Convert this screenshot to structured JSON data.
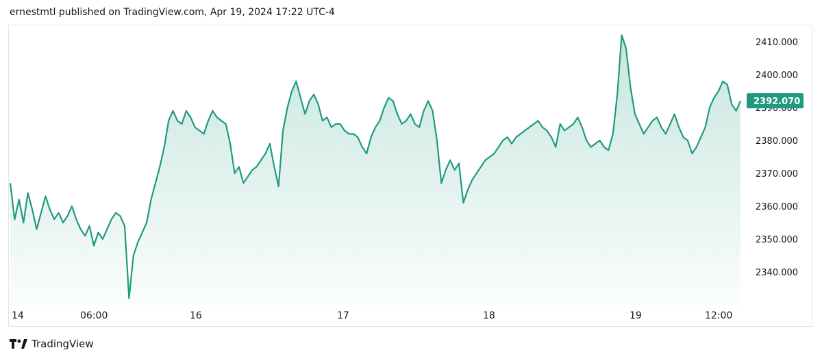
{
  "header": {
    "text": "ernestmtl published on TradingView.com, Apr 19, 2024 17:22 UTC-4"
  },
  "footer": {
    "brand": "TradingView"
  },
  "colors": {
    "line": "#1e9a7f",
    "fill": "#1e9a7f",
    "price_badge": "#1e9a7f"
  },
  "chart_data": {
    "type": "area",
    "x_ticks": [
      "14",
      "06:00",
      "16",
      "17",
      "18",
      "19",
      "12:00"
    ],
    "y_ticks": [
      "2340.000",
      "2350.000",
      "2360.000",
      "2370.000",
      "2380.000",
      "2390.000",
      "2400.000",
      "2410.000"
    ],
    "ylim": [
      2330,
      2415
    ],
    "last_price": "2392.070",
    "values": [
      2367,
      2356,
      2362,
      2355,
      2364,
      2359,
      2353,
      2358,
      2363,
      2359,
      2356,
      2358,
      2355,
      2357,
      2360,
      2356,
      2353,
      2351,
      2354,
      2348,
      2352,
      2350,
      2353,
      2356,
      2358,
      2357,
      2354,
      2332,
      2345,
      2349,
      2352,
      2355,
      2362,
      2367,
      2372,
      2378,
      2386,
      2389,
      2386,
      2385,
      2389,
      2387,
      2384,
      2383,
      2382,
      2386,
      2389,
      2387,
      2386,
      2385,
      2379,
      2370,
      2372,
      2367,
      2369,
      2371,
      2372,
      2374,
      2376,
      2379,
      2372,
      2366,
      2383,
      2390,
      2395,
      2398,
      2393,
      2388,
      2392,
      2394,
      2391,
      2386,
      2387,
      2384,
      2385,
      2385,
      2383,
      2382,
      2382,
      2381,
      2378,
      2376,
      2381,
      2384,
      2386,
      2390,
      2393,
      2392,
      2388,
      2385,
      2386,
      2388,
      2385,
      2384,
      2389,
      2392,
      2389,
      2380,
      2367,
      2371,
      2374,
      2371,
      2373,
      2361,
      2365,
      2368,
      2370,
      2372,
      2374,
      2375,
      2376,
      2378,
      2380,
      2381,
      2379,
      2381,
      2382,
      2383,
      2384,
      2385,
      2386,
      2384,
      2383,
      2381,
      2378,
      2385,
      2383,
      2384,
      2385,
      2387,
      2384,
      2380,
      2378,
      2379,
      2380,
      2378,
      2377,
      2382,
      2394,
      2412,
      2408,
      2396,
      2388,
      2385,
      2382,
      2384,
      2386,
      2387,
      2384,
      2382,
      2385,
      2388,
      2384,
      2381,
      2380,
      2376,
      2378,
      2381,
      2384,
      2390,
      2393,
      2395,
      2398,
      2397,
      2391,
      2389,
      2392
    ]
  }
}
